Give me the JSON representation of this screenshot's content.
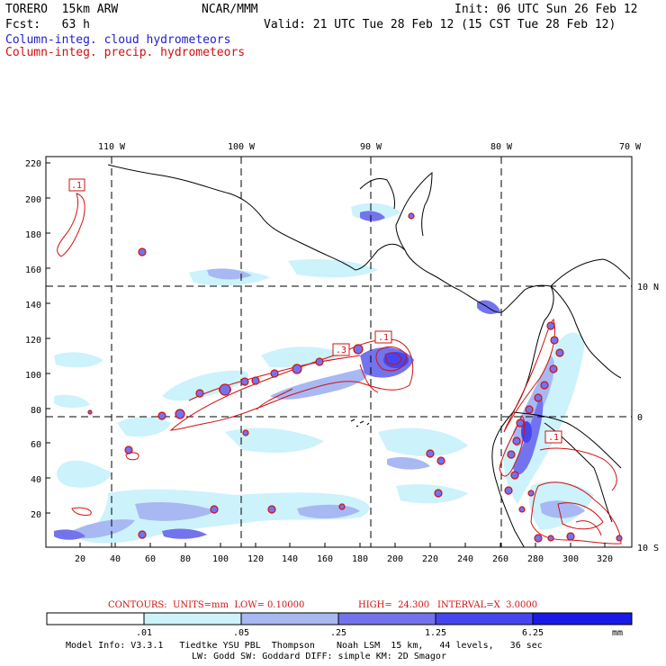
{
  "header": {
    "model": "TORERO  15km ARW",
    "center": "NCAR/MMM",
    "init": "Init: 06 UTC Sun 26 Feb 12",
    "fcst": "Fcst:   63 h",
    "valid": "Valid: 21 UTC Tue 28 Feb 12 (15 CST Tue 28 Feb 12)",
    "field1": "Column-integ. cloud hydrometeors",
    "field2": "Column-integ. precip. hydrometeors"
  },
  "map": {
    "lon_labels": [
      "110 W",
      "100 W",
      "90 W",
      "80 W",
      "70 W"
    ],
    "lat_labels": [
      "10 N",
      "0",
      "10 S"
    ],
    "y_ticks": [
      "220",
      "200",
      "180",
      "160",
      "140",
      "120",
      "100",
      "80",
      "60",
      "40",
      "20"
    ],
    "x_ticks": [
      "20",
      "40",
      "60",
      "80",
      "100",
      "120",
      "140",
      "160",
      "180",
      "200",
      "220",
      "240",
      "260",
      "280",
      "300",
      "320"
    ],
    "contour_labels": [
      ".1",
      ".3",
      ".1",
      ".1"
    ]
  },
  "contours_info": {
    "units": "CONTOURS:  UNITS=mm  LOW= 0.10000",
    "high": "HIGH=  24.300",
    "interval": "INTERVAL=X  3.0000"
  },
  "colorbar": {
    "labels": [
      ".01",
      ".05",
      ".25",
      "1.25",
      "6.25"
    ],
    "unit": "mm",
    "colors": [
      "#ffffff",
      "#ccf2fb",
      "#a8b8f3",
      "#7373ee",
      "#4646f0",
      "#1a1ae6"
    ]
  },
  "model_info": {
    "line1": "Model Info: V3.3.1   Tiedtke YSU PBL  Thompson    Noah LSM  15 km,   44 levels,   36 sec",
    "line2": "LW: Godd SW: Goddard DIFF: simple KM: 2D Smagor"
  }
}
